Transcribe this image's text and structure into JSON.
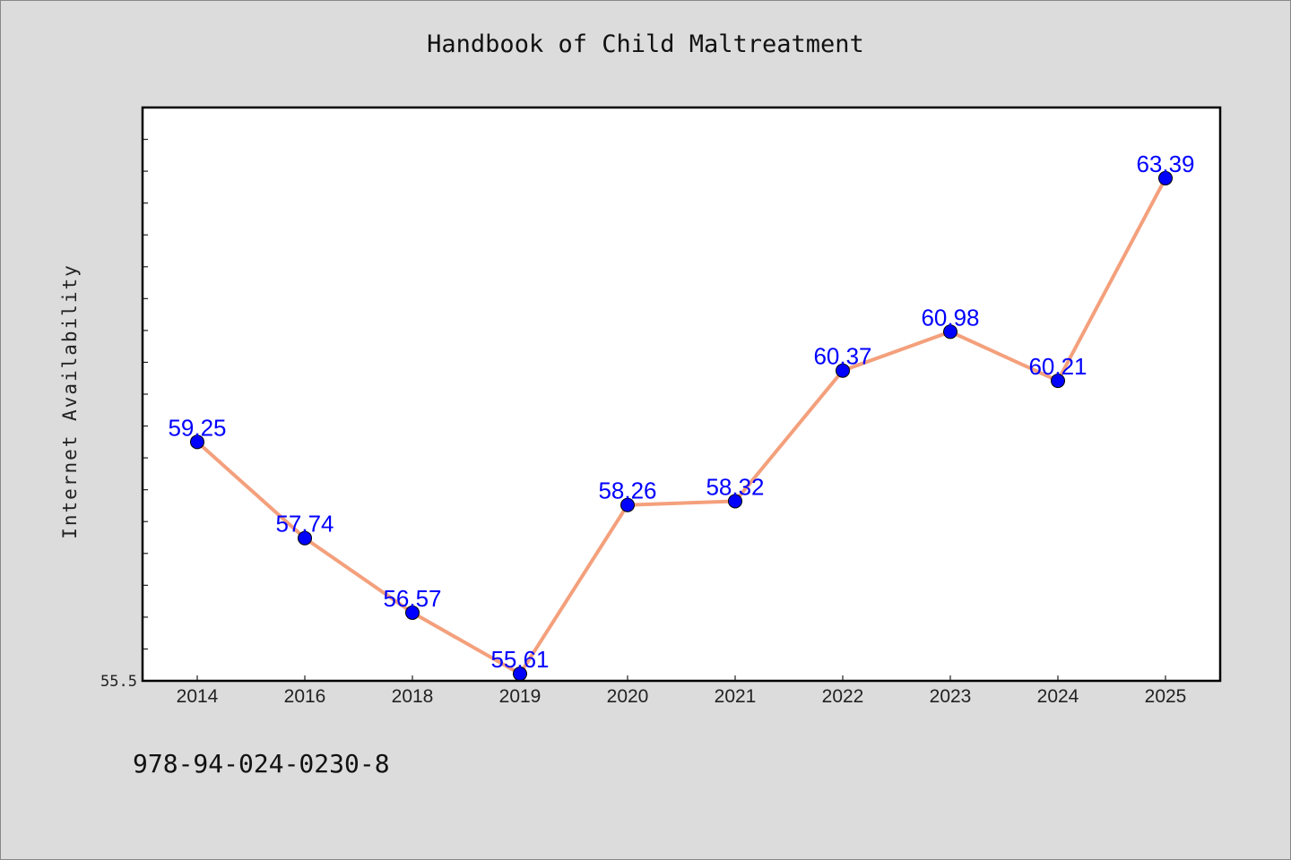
{
  "chart_data": {
    "type": "line",
    "title": "Handbook of Child Maltreatment",
    "xlabel": "",
    "ylabel": "Internet Availability",
    "categories": [
      "2014",
      "2016",
      "2018",
      "2019",
      "2020",
      "2021",
      "2022",
      "2023",
      "2024",
      "2025"
    ],
    "series": [
      {
        "values": [
          59.25,
          57.74,
          56.57,
          55.61,
          58.26,
          58.32,
          60.37,
          60.98,
          60.21,
          63.39
        ]
      }
    ],
    "ylim": [
      55.5,
      64.5
    ],
    "ytick_labels": [
      "55.5"
    ],
    "grid": false,
    "line_color": "#f4a07c",
    "marker_color": "#0000ff",
    "label_color": "#0000ff"
  },
  "footer": {
    "isbn": "978-94-024-0230-8"
  }
}
